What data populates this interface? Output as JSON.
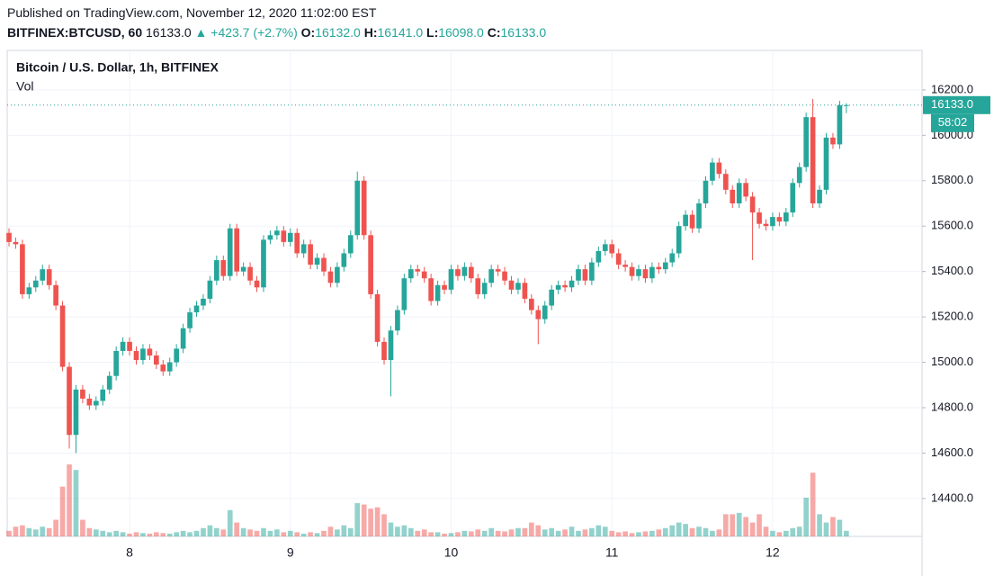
{
  "header": {
    "published": "Published on TradingView.com, November 12, 2020 11:02:00 EST",
    "symbol": "BITFINEX:BTCUSD, 60",
    "price": "16133.0",
    "change": "▲ +423.7 (+2.7%)",
    "ohlc": [
      {
        "label": "O:",
        "value": "16132.0"
      },
      {
        "label": "H:",
        "value": "16141.0"
      },
      {
        "label": "L:",
        "value": "16098.0"
      },
      {
        "label": "C:",
        "value": "16133.0"
      }
    ]
  },
  "chart_data": {
    "type": "candlestick",
    "title": "Bitcoin / U.S. Dollar, 1h, BITFINEX",
    "volume_label": "Vol",
    "categories": [
      null,
      null,
      null,
      null,
      null,
      null,
      null,
      null,
      null,
      null,
      null,
      null,
      null,
      null,
      null,
      null,
      null,
      null,
      "8",
      null,
      null,
      null,
      null,
      null,
      null,
      null,
      null,
      null,
      null,
      null,
      null,
      null,
      null,
      null,
      null,
      null,
      null,
      null,
      null,
      null,
      null,
      null,
      "9",
      null,
      null,
      null,
      null,
      null,
      null,
      null,
      null,
      null,
      null,
      null,
      null,
      null,
      null,
      null,
      null,
      null,
      null,
      null,
      null,
      null,
      null,
      null,
      "10",
      null,
      null,
      null,
      null,
      null,
      null,
      null,
      null,
      null,
      null,
      null,
      null,
      null,
      null,
      null,
      null,
      null,
      null,
      null,
      null,
      null,
      null,
      null,
      "11",
      null,
      null,
      null,
      null,
      null,
      null,
      null,
      null,
      null,
      null,
      null,
      null,
      null,
      null,
      null,
      null,
      null,
      null,
      null,
      null,
      null,
      null,
      null,
      "12",
      null,
      null,
      null,
      null,
      null,
      null,
      null,
      null,
      null,
      null,
      null
    ],
    "open": [
      15570,
      15530,
      15520,
      15300,
      15330,
      15360,
      15410,
      15340,
      15250,
      14980,
      14680,
      14880,
      14840,
      14810,
      14830,
      14880,
      14940,
      15050,
      15090,
      15050,
      15010,
      15060,
      15030,
      14990,
      14960,
      15000,
      15060,
      15150,
      15220,
      15250,
      15280,
      15360,
      15450,
      15380,
      15590,
      15400,
      15420,
      15360,
      15330,
      15540,
      15560,
      15580,
      15530,
      15570,
      15480,
      15520,
      15430,
      15460,
      15400,
      15350,
      15420,
      15480,
      15560,
      15800,
      15560,
      15300,
      15090,
      15010,
      15140,
      15230,
      15370,
      15410,
      15400,
      15370,
      15270,
      15340,
      15320,
      15410,
      15380,
      15420,
      15370,
      15300,
      15350,
      15410,
      15400,
      15360,
      15320,
      15350,
      15280,
      15230,
      15190,
      15250,
      15320,
      15340,
      15330,
      15360,
      15410,
      15360,
      15440,
      15490,
      15520,
      15480,
      15430,
      15420,
      15380,
      15410,
      15370,
      15420,
      15410,
      15440,
      15480,
      15600,
      15650,
      15590,
      15700,
      15800,
      15880,
      15830,
      15760,
      15700,
      15790,
      15730,
      15660,
      15610,
      15600,
      15640,
      15620,
      15660,
      15790,
      15860,
      16080,
      15700,
      15760,
      15990,
      15960,
      16132
    ],
    "high": [
      15590,
      15550,
      15540,
      15350,
      15380,
      15430,
      15430,
      15360,
      15270,
      15000,
      14900,
      14900,
      14860,
      14850,
      14900,
      14960,
      15070,
      15110,
      15110,
      15070,
      15080,
      15080,
      15050,
      15010,
      15020,
      15080,
      15170,
      15240,
      15270,
      15300,
      15380,
      15470,
      15470,
      15610,
      15610,
      15440,
      15440,
      15380,
      15560,
      15580,
      15600,
      15600,
      15590,
      15590,
      15540,
      15540,
      15480,
      15480,
      15420,
      15440,
      15500,
      15580,
      15840,
      15820,
      15580,
      15320,
      15110,
      15160,
      15250,
      15390,
      15430,
      15430,
      15420,
      15390,
      15360,
      15360,
      15430,
      15430,
      15440,
      15440,
      15390,
      15370,
      15430,
      15430,
      15420,
      15380,
      15370,
      15370,
      15300,
      15250,
      15270,
      15340,
      15360,
      15360,
      15380,
      15430,
      15430,
      15460,
      15510,
      15540,
      15540,
      15500,
      15450,
      15440,
      15430,
      15430,
      15440,
      15440,
      15460,
      15500,
      15620,
      15670,
      15670,
      15720,
      15820,
      15900,
      15900,
      15850,
      15780,
      15810,
      15810,
      15750,
      15680,
      15630,
      15660,
      15660,
      15680,
      15810,
      15880,
      16100,
      16160,
      15780,
      16010,
      16010,
      16152,
      16141
    ],
    "low": [
      15510,
      15500,
      15280,
      15280,
      15310,
      15340,
      15320,
      15230,
      14960,
      14620,
      14600,
      14820,
      14790,
      14790,
      14810,
      14860,
      14920,
      15030,
      15030,
      14990,
      14990,
      15010,
      14970,
      14940,
      14940,
      14980,
      15040,
      15130,
      15200,
      15230,
      15260,
      15340,
      15360,
      15360,
      15380,
      15380,
      15340,
      15310,
      15310,
      15520,
      15540,
      15510,
      15510,
      15460,
      15460,
      15410,
      15410,
      15380,
      15330,
      15330,
      15400,
      15460,
      15540,
      15540,
      15280,
      15070,
      14990,
      14850,
      15120,
      15210,
      15350,
      15380,
      15350,
      15250,
      15250,
      15300,
      15300,
      15360,
      15360,
      15350,
      15280,
      15280,
      15330,
      15380,
      15340,
      15300,
      15300,
      15260,
      15210,
      15080,
      15170,
      15230,
      15300,
      15310,
      15310,
      15340,
      15340,
      15340,
      15420,
      15470,
      15460,
      15410,
      15400,
      15360,
      15360,
      15350,
      15350,
      15390,
      15390,
      15420,
      15460,
      15580,
      15570,
      15570,
      15680,
      15780,
      15810,
      15740,
      15680,
      15680,
      15710,
      15450,
      15590,
      15580,
      15580,
      15600,
      15600,
      15640,
      15770,
      15840,
      15680,
      15680,
      15740,
      15940,
      15940,
      16098
    ],
    "close": [
      15530,
      15520,
      15300,
      15330,
      15360,
      15410,
      15340,
      15250,
      14980,
      14680,
      14880,
      14840,
      14810,
      14830,
      14880,
      14940,
      15050,
      15090,
      15050,
      15010,
      15060,
      15030,
      14990,
      14960,
      15000,
      15060,
      15150,
      15220,
      15250,
      15280,
      15360,
      15450,
      15380,
      15590,
      15400,
      15420,
      15360,
      15330,
      15540,
      15560,
      15580,
      15530,
      15570,
      15480,
      15520,
      15430,
      15460,
      15400,
      15350,
      15420,
      15480,
      15560,
      15800,
      15560,
      15300,
      15090,
      15010,
      15140,
      15230,
      15370,
      15410,
      15400,
      15370,
      15270,
      15340,
      15320,
      15410,
      15380,
      15420,
      15370,
      15300,
      15350,
      15410,
      15400,
      15360,
      15320,
      15350,
      15280,
      15230,
      15190,
      15250,
      15320,
      15340,
      15330,
      15360,
      15410,
      15360,
      15440,
      15490,
      15520,
      15480,
      15430,
      15420,
      15380,
      15410,
      15370,
      15420,
      15410,
      15440,
      15480,
      15600,
      15650,
      15590,
      15700,
      15800,
      15880,
      15830,
      15760,
      15700,
      15790,
      15730,
      15660,
      15610,
      15600,
      15640,
      15620,
      15660,
      15790,
      15860,
      16080,
      15700,
      15760,
      15990,
      15960,
      16132,
      16133
    ],
    "volume": [
      200,
      350,
      400,
      300,
      250,
      350,
      300,
      600,
      1800,
      2600,
      2400,
      600,
      300,
      250,
      200,
      150,
      200,
      150,
      100,
      150,
      120,
      100,
      150,
      120,
      100,
      150,
      200,
      150,
      200,
      300,
      400,
      300,
      250,
      950,
      500,
      300,
      250,
      200,
      300,
      200,
      250,
      150,
      200,
      150,
      100,
      150,
      120,
      200,
      350,
      250,
      400,
      300,
      1200,
      1150,
      1000,
      1050,
      800,
      500,
      350,
      400,
      300,
      200,
      250,
      150,
      150,
      100,
      120,
      150,
      200,
      180,
      250,
      200,
      300,
      200,
      180,
      250,
      300,
      300,
      500,
      400,
      250,
      300,
      200,
      250,
      350,
      200,
      250,
      300,
      400,
      350,
      200,
      150,
      180,
      120,
      150,
      180,
      200,
      250,
      300,
      400,
      500,
      450,
      300,
      350,
      300,
      200,
      250,
      800,
      800,
      850,
      700,
      500,
      800,
      350,
      200,
      150,
      200,
      300,
      350,
      1400,
      2300,
      800,
      500,
      700,
      600,
      200
    ],
    "up_color": "#26a69a",
    "down_color": "#ef5350",
    "ylim": [
      14233,
      16374
    ],
    "yticks": [
      {
        "value": 14400,
        "label": "14400.0"
      },
      {
        "value": 14600,
        "label": "14600.0"
      },
      {
        "value": 14800,
        "label": "14800.0"
      },
      {
        "value": 15000,
        "label": "15000.0"
      },
      {
        "value": 15200,
        "label": "15200.0"
      },
      {
        "value": 15400,
        "label": "15400.0"
      },
      {
        "value": 15600,
        "label": "15600.0"
      },
      {
        "value": 15800,
        "label": "15800.0"
      },
      {
        "value": 16000,
        "label": "16000.0"
      },
      {
        "value": 16200,
        "label": "16200.0"
      }
    ],
    "grid": true,
    "last_price_label": "16133.0",
    "countdown_label": "58:02"
  }
}
